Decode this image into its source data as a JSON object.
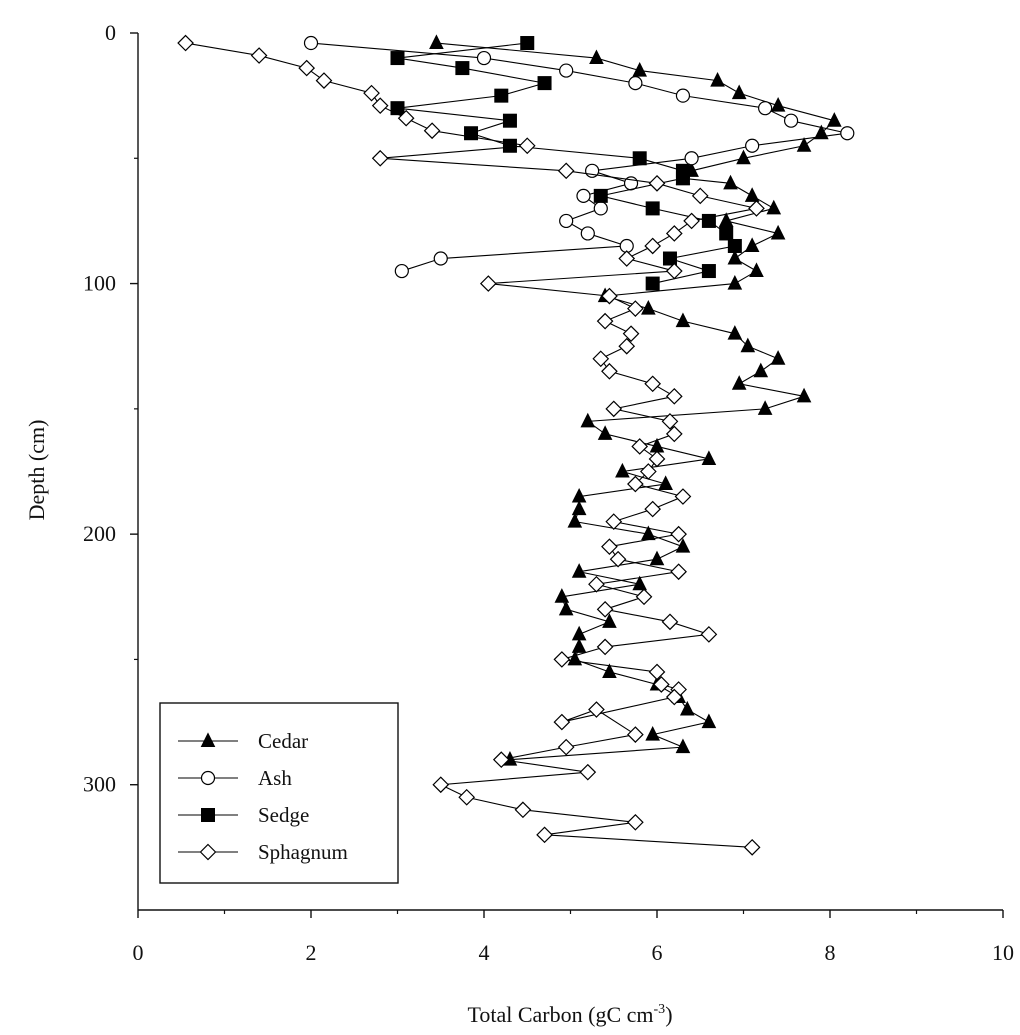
{
  "chart_data": {
    "type": "line",
    "xlabel": "Total Carbon (gC cm",
    "xlabel_sup": "-3",
    "xlabel_end": ")",
    "ylabel": "Depth (cm)",
    "xlim": [
      0,
      10
    ],
    "ylim": [
      0,
      350
    ],
    "y_inverted": true,
    "x_ticks": [
      0,
      2,
      4,
      6,
      8,
      10
    ],
    "y_ticks": [
      0,
      100,
      200,
      300
    ],
    "legend_position": "bottom-left",
    "grid": false,
    "series": [
      {
        "name": "Cedar",
        "marker": "filled-triangle",
        "points": [
          [
            3.45,
            4
          ],
          [
            5.3,
            10
          ],
          [
            5.8,
            15
          ],
          [
            6.7,
            19
          ],
          [
            6.95,
            24
          ],
          [
            7.4,
            29
          ],
          [
            8.05,
            35
          ],
          [
            7.9,
            40
          ],
          [
            7.7,
            45
          ],
          [
            7.0,
            50
          ],
          [
            6.4,
            55
          ],
          [
            6.3,
            58
          ],
          [
            6.85,
            60
          ],
          [
            7.1,
            65
          ],
          [
            7.35,
            70
          ],
          [
            6.8,
            75
          ],
          [
            7.4,
            80
          ],
          [
            7.1,
            85
          ],
          [
            6.9,
            90
          ],
          [
            7.15,
            95
          ],
          [
            6.9,
            100
          ],
          [
            5.4,
            105
          ],
          [
            5.9,
            110
          ],
          [
            6.3,
            115
          ],
          [
            6.9,
            120
          ],
          [
            7.05,
            125
          ],
          [
            7.4,
            130
          ],
          [
            7.2,
            135
          ],
          [
            6.95,
            140
          ],
          [
            7.7,
            145
          ],
          [
            7.25,
            150
          ],
          [
            5.2,
            155
          ],
          [
            5.4,
            160
          ],
          [
            6.0,
            165
          ],
          [
            6.6,
            170
          ],
          [
            5.6,
            175
          ],
          [
            6.1,
            180
          ],
          [
            5.1,
            185
          ],
          [
            5.1,
            190
          ],
          [
            5.05,
            195
          ],
          [
            5.9,
            200
          ],
          [
            6.3,
            205
          ],
          [
            6.0,
            210
          ],
          [
            5.1,
            215
          ],
          [
            5.8,
            220
          ],
          [
            4.9,
            225
          ],
          [
            4.95,
            230
          ],
          [
            5.45,
            235
          ],
          [
            5.1,
            240
          ],
          [
            5.1,
            245
          ],
          [
            5.05,
            250
          ],
          [
            5.45,
            255
          ],
          [
            6.0,
            260
          ],
          [
            6.25,
            265
          ],
          [
            6.35,
            270
          ],
          [
            6.6,
            275
          ],
          [
            5.95,
            280
          ],
          [
            6.3,
            285
          ],
          [
            4.3,
            290
          ]
        ]
      },
      {
        "name": "Ash",
        "marker": "open-circle",
        "points": [
          [
            2.0,
            4
          ],
          [
            4.0,
            10
          ],
          [
            4.95,
            15
          ],
          [
            5.75,
            20
          ],
          [
            6.3,
            25
          ],
          [
            7.25,
            30
          ],
          [
            7.55,
            35
          ],
          [
            8.2,
            40
          ],
          [
            7.1,
            45
          ],
          [
            6.4,
            50
          ],
          [
            5.25,
            55
          ],
          [
            5.7,
            60
          ],
          [
            5.15,
            65
          ],
          [
            5.35,
            70
          ],
          [
            4.95,
            75
          ],
          [
            5.2,
            80
          ],
          [
            5.65,
            85
          ],
          [
            3.5,
            90
          ],
          [
            3.05,
            95
          ]
        ]
      },
      {
        "name": "Sedge",
        "marker": "filled-square",
        "points": [
          [
            4.5,
            4
          ],
          [
            3.0,
            10
          ],
          [
            3.75,
            14
          ],
          [
            4.7,
            20
          ],
          [
            4.2,
            25
          ],
          [
            3.0,
            30
          ],
          [
            4.3,
            35
          ],
          [
            3.85,
            40
          ],
          [
            4.3,
            45
          ],
          [
            5.8,
            50
          ],
          [
            6.3,
            55
          ],
          [
            6.3,
            58
          ],
          [
            5.35,
            65
          ],
          [
            5.95,
            70
          ],
          [
            6.6,
            75
          ],
          [
            6.8,
            80
          ],
          [
            6.9,
            85
          ],
          [
            6.15,
            90
          ],
          [
            6.6,
            95
          ],
          [
            5.95,
            100
          ]
        ]
      },
      {
        "name": "Sphagnum",
        "marker": "open-diamond",
        "points": [
          [
            0.55,
            4
          ],
          [
            1.4,
            9
          ],
          [
            1.95,
            14
          ],
          [
            2.15,
            19
          ],
          [
            2.7,
            24
          ],
          [
            2.8,
            29
          ],
          [
            3.1,
            34
          ],
          [
            3.4,
            39
          ],
          [
            4.5,
            45
          ],
          [
            2.8,
            50
          ],
          [
            4.95,
            55
          ],
          [
            6.0,
            60
          ],
          [
            6.5,
            65
          ],
          [
            7.15,
            70
          ],
          [
            6.4,
            75
          ],
          [
            6.2,
            80
          ],
          [
            5.95,
            85
          ],
          [
            5.65,
            90
          ],
          [
            6.2,
            95
          ],
          [
            4.05,
            100
          ],
          [
            5.45,
            105
          ],
          [
            5.75,
            110
          ],
          [
            5.4,
            115
          ],
          [
            5.7,
            120
          ],
          [
            5.65,
            125
          ],
          [
            5.35,
            130
          ],
          [
            5.45,
            135
          ],
          [
            5.95,
            140
          ],
          [
            6.2,
            145
          ],
          [
            5.5,
            150
          ],
          [
            6.15,
            155
          ],
          [
            6.2,
            160
          ],
          [
            5.8,
            165
          ],
          [
            6.0,
            170
          ],
          [
            5.9,
            175
          ],
          [
            5.75,
            180
          ],
          [
            6.3,
            185
          ],
          [
            5.95,
            190
          ],
          [
            5.5,
            195
          ],
          [
            6.25,
            200
          ],
          [
            5.45,
            205
          ],
          [
            5.55,
            210
          ],
          [
            6.25,
            215
          ],
          [
            5.3,
            220
          ],
          [
            5.85,
            225
          ],
          [
            5.4,
            230
          ],
          [
            6.15,
            235
          ],
          [
            6.6,
            240
          ],
          [
            5.4,
            245
          ],
          [
            4.9,
            250
          ],
          [
            6.0,
            255
          ],
          [
            6.05,
            260
          ],
          [
            6.25,
            262
          ],
          [
            6.2,
            265
          ],
          [
            4.9,
            275
          ],
          [
            5.3,
            270
          ],
          [
            5.75,
            280
          ],
          [
            4.95,
            285
          ],
          [
            4.2,
            290
          ],
          [
            5.2,
            295
          ],
          [
            3.5,
            300
          ],
          [
            3.8,
            305
          ],
          [
            4.45,
            310
          ],
          [
            5.75,
            315
          ],
          [
            4.7,
            320
          ],
          [
            7.1,
            325
          ]
        ]
      }
    ]
  }
}
